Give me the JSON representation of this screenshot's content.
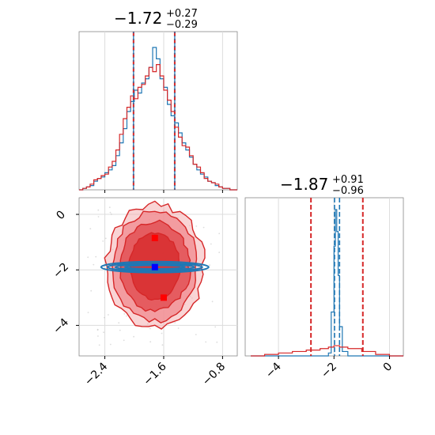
{
  "chart_data": [
    {
      "type": "histogram",
      "panel": "marginal parameter 1",
      "title": {
        "value": "−1.72",
        "upper": "+0.27",
        "lower": "−0.29"
      },
      "x_range": [
        -2.75,
        -0.6
      ],
      "grid": true,
      "bins": [
        -2.75,
        -2.7,
        -2.65,
        -2.6,
        -2.55,
        -2.5,
        -2.45,
        -2.4,
        -2.35,
        -2.3,
        -2.25,
        -2.2,
        -2.15,
        -2.1,
        -2.05,
        -2.0,
        -1.95,
        -1.9,
        -1.85,
        -1.8,
        -1.75,
        -1.7,
        -1.65,
        -1.6,
        -1.55,
        -1.5,
        -1.45,
        -1.4,
        -1.35,
        -1.3,
        -1.25,
        -1.2,
        -1.15,
        -1.1,
        -1.05,
        -1.0,
        -0.95,
        -0.9,
        -0.85,
        -0.8,
        -0.75,
        -0.7,
        -0.65,
        -0.6
      ],
      "series": [
        {
          "color": "#1f77b4",
          "density": [
            0.0,
            0.01,
            0.02,
            0.03,
            0.06,
            0.08,
            0.09,
            0.12,
            0.14,
            0.17,
            0.24,
            0.33,
            0.43,
            0.55,
            0.62,
            0.7,
            0.68,
            0.75,
            0.78,
            0.86,
            1.0,
            0.92,
            0.78,
            0.72,
            0.6,
            0.52,
            0.47,
            0.4,
            0.33,
            0.28,
            0.23,
            0.18,
            0.14,
            0.11,
            0.09,
            0.06,
            0.05,
            0.03,
            0.02,
            0.01,
            0.01,
            0.0,
            0.0
          ]
        },
        {
          "color": "#d62728",
          "density": [
            0.0,
            0.01,
            0.02,
            0.04,
            0.07,
            0.08,
            0.1,
            0.11,
            0.16,
            0.2,
            0.28,
            0.39,
            0.5,
            0.58,
            0.66,
            0.64,
            0.72,
            0.74,
            0.8,
            0.86,
            0.83,
            0.88,
            0.8,
            0.7,
            0.63,
            0.55,
            0.44,
            0.37,
            0.31,
            0.3,
            0.24,
            0.18,
            0.16,
            0.12,
            0.08,
            0.06,
            0.05,
            0.04,
            0.02,
            0.01,
            0.01,
            0.0,
            0.0
          ]
        }
      ],
      "quantile_lines": {
        "red": [
          -2.01,
          -1.45
        ],
        "blue": [
          -2.01,
          -1.45
        ]
      }
    },
    {
      "type": "histogram",
      "panel": "marginal parameter 2",
      "title": {
        "value": "−1.87",
        "upper": "+0.91",
        "lower": "−0.96"
      },
      "x_range": [
        -5.2,
        0.5
      ],
      "x_ticks": [
        "−4",
        "−2",
        "0"
      ],
      "grid": true,
      "bins": [
        -5.0,
        -4.5,
        -4.0,
        -3.5,
        -3.0,
        -2.5,
        -2.2,
        -2.1,
        -2.0,
        -1.95,
        -1.9,
        -1.85,
        -1.8,
        -1.7,
        -1.5,
        -1.0,
        -0.5,
        0.0,
        0.5
      ],
      "series": [
        {
          "color": "#1f77b4",
          "density": [
            0.0,
            0.0,
            0.0,
            0.0,
            0.0,
            0.0,
            0.02,
            0.3,
            0.75,
            1.0,
            0.85,
            0.55,
            0.2,
            0.03,
            0.0,
            0.0,
            0.0,
            0.0
          ]
        },
        {
          "color": "#d62728",
          "density": [
            0.0,
            0.01,
            0.02,
            0.03,
            0.04,
            0.05,
            0.06,
            0.06,
            0.07,
            0.07,
            0.07,
            0.07,
            0.06,
            0.06,
            0.05,
            0.03,
            0.01,
            0.0
          ]
        }
      ],
      "quantile_lines": {
        "red": [
          -2.83,
          -0.96
        ],
        "blue": [
          -1.98,
          -1.8
        ]
      }
    },
    {
      "type": "contour",
      "panel": "joint distribution",
      "x_range": [
        -2.75,
        -0.6
      ],
      "y_range": [
        -5.1,
        0.6
      ],
      "x_ticks": [
        "−2.4",
        "−1.6",
        "−0.8"
      ],
      "y_ticks": [
        "0",
        "−2",
        "−4"
      ],
      "grid": true,
      "series": [
        {
          "color": "#d62728",
          "center": [
            -1.72,
            -1.87
          ],
          "levels": [
            "0.5",
            "1.0",
            "1.5",
            "2.0"
          ]
        },
        {
          "color": "#1f77b4",
          "center": [
            -1.72,
            -1.9
          ],
          "levels": [
            "0.5",
            "1.0",
            "1.5",
            "2.0"
          ]
        }
      ],
      "markers": [
        {
          "color": "#ff0000",
          "x": -1.72,
          "y": -0.85
        },
        {
          "color": "#0000ff",
          "x": -1.72,
          "y": -1.9
        },
        {
          "color": "#ff0000",
          "x": -1.6,
          "y": -3.0
        }
      ]
    }
  ]
}
